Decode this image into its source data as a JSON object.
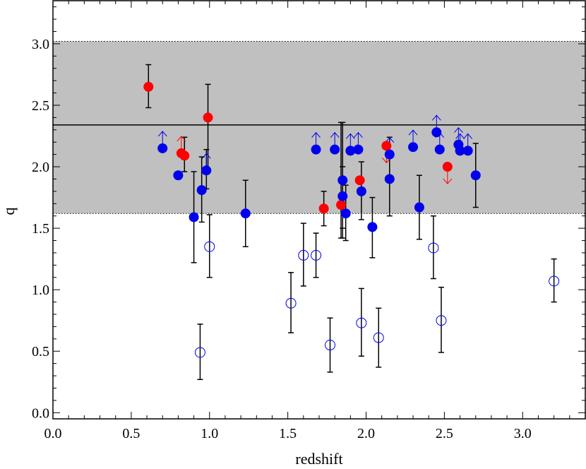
{
  "chart_data": {
    "type": "scatter",
    "xlabel": "redshift",
    "ylabel": "q",
    "xlim": [
      0.0,
      3.4
    ],
    "ylim": [
      -0.05,
      3.35
    ],
    "xticks": [
      0.0,
      0.5,
      1.0,
      1.5,
      2.0,
      2.5,
      3.0
    ],
    "xtick_labels": [
      "0.0",
      "0.5",
      "1.0",
      "1.5",
      "2.0",
      "2.5",
      "3.0"
    ],
    "yticks": [
      0.0,
      0.5,
      1.0,
      1.5,
      2.0,
      2.5,
      3.0
    ],
    "ytick_labels": [
      "0.0",
      "0.5",
      "1.0",
      "1.5",
      "2.0",
      "2.5",
      "3.0"
    ],
    "shaded_band": {
      "low": 1.62,
      "high": 3.02,
      "color": "#c0c0c0"
    },
    "reference_line": 2.34,
    "grid": false,
    "colors": {
      "red": "#ff0000",
      "blue": "#0000ee",
      "errorbar": "#000000"
    },
    "series": [
      {
        "marker": "filled-red-circle",
        "points": [
          {
            "x": 0.61,
            "y": 2.65,
            "yerr": [
              2.48,
              2.83
            ]
          },
          {
            "x": 0.82,
            "y": 2.11,
            "lower_limit": true
          },
          {
            "x": 0.84,
            "y": 2.09,
            "yerr": [
              1.96,
              2.24
            ]
          },
          {
            "x": 0.99,
            "y": 2.4,
            "yerr": [
              1.98,
              2.67
            ]
          },
          {
            "x": 1.73,
            "y": 1.66,
            "yerr": [
              1.52,
              1.8
            ]
          },
          {
            "x": 1.84,
            "y": 1.69,
            "yerr": [
              1.42,
              2.36
            ]
          },
          {
            "x": 1.96,
            "y": 1.89
          },
          {
            "x": 2.13,
            "y": 2.17,
            "upper_limit": true
          },
          {
            "x": 2.52,
            "y": 2.0,
            "upper_limit": true
          }
        ]
      },
      {
        "marker": "filled-blue-circle",
        "points": [
          {
            "x": 0.7,
            "y": 2.15,
            "lower_limit": true
          },
          {
            "x": 0.8,
            "y": 1.93
          },
          {
            "x": 0.9,
            "y": 1.59,
            "yerr": [
              1.22,
              1.96
            ]
          },
          {
            "x": 0.95,
            "y": 1.81,
            "yerr": [
              1.55,
              2.08
            ]
          },
          {
            "x": 0.98,
            "y": 1.97,
            "yerr": [
              1.82,
              2.14
            ],
            "lower_limit": true
          },
          {
            "x": 1.23,
            "y": 1.62,
            "yerr": [
              1.35,
              1.89
            ]
          },
          {
            "x": 1.68,
            "y": 2.14,
            "lower_limit": true
          },
          {
            "x": 1.8,
            "y": 2.14,
            "lower_limit": true
          },
          {
            "x": 1.85,
            "y": 1.89,
            "yerr": [
              1.42,
              2.36
            ]
          },
          {
            "x": 1.85,
            "y": 1.76,
            "yerr": [
              1.5,
              2.0
            ]
          },
          {
            "x": 1.87,
            "y": 1.62,
            "yerr": [
              1.4,
              1.85
            ]
          },
          {
            "x": 1.9,
            "y": 2.13,
            "lower_limit": true
          },
          {
            "x": 1.95,
            "y": 2.14,
            "lower_limit": true
          },
          {
            "x": 1.97,
            "y": 1.8,
            "yerr": [
              1.57,
              2.04
            ]
          },
          {
            "x": 2.04,
            "y": 1.51,
            "yerr": [
              1.26,
              1.75
            ]
          },
          {
            "x": 2.15,
            "y": 2.1,
            "lower_limit": true
          },
          {
            "x": 2.15,
            "y": 1.9,
            "yerr": [
              1.6,
              2.24
            ]
          },
          {
            "x": 2.3,
            "y": 2.16,
            "lower_limit": true
          },
          {
            "x": 2.34,
            "y": 1.67,
            "yerr": [
              1.41,
              1.93
            ]
          },
          {
            "x": 2.45,
            "y": 2.28,
            "lower_limit": true
          },
          {
            "x": 2.47,
            "y": 2.14,
            "lower_limit": true
          },
          {
            "x": 2.59,
            "y": 2.18,
            "lower_limit": true
          },
          {
            "x": 2.6,
            "y": 2.13,
            "lower_limit": true
          },
          {
            "x": 2.65,
            "y": 2.13,
            "lower_limit": true
          },
          {
            "x": 2.7,
            "y": 1.93,
            "yerr": [
              1.67,
              2.19
            ]
          }
        ]
      },
      {
        "marker": "open-blue-circle",
        "points": [
          {
            "x": 0.94,
            "y": 0.49,
            "yerr": [
              0.27,
              0.72
            ]
          },
          {
            "x": 1.0,
            "y": 1.35,
            "yerr": [
              1.1,
              1.61
            ]
          },
          {
            "x": 1.52,
            "y": 0.89,
            "yerr": [
              0.65,
              1.14
            ]
          },
          {
            "x": 1.6,
            "y": 1.28,
            "yerr": [
              1.03,
              1.54
            ]
          },
          {
            "x": 1.68,
            "y": 1.28,
            "yerr": [
              1.1,
              1.46
            ]
          },
          {
            "x": 1.77,
            "y": 0.55,
            "yerr": [
              0.33,
              0.77
            ]
          },
          {
            "x": 1.97,
            "y": 0.73,
            "yerr": [
              0.46,
              1.01
            ]
          },
          {
            "x": 2.08,
            "y": 0.61,
            "yerr": [
              0.37,
              0.85
            ]
          },
          {
            "x": 2.43,
            "y": 1.34,
            "yerr": [
              1.09,
              1.6
            ]
          },
          {
            "x": 2.48,
            "y": 0.75,
            "yerr": [
              0.49,
              1.02
            ]
          },
          {
            "x": 3.2,
            "y": 1.07,
            "yerr": [
              0.9,
              1.25
            ]
          }
        ]
      }
    ]
  }
}
